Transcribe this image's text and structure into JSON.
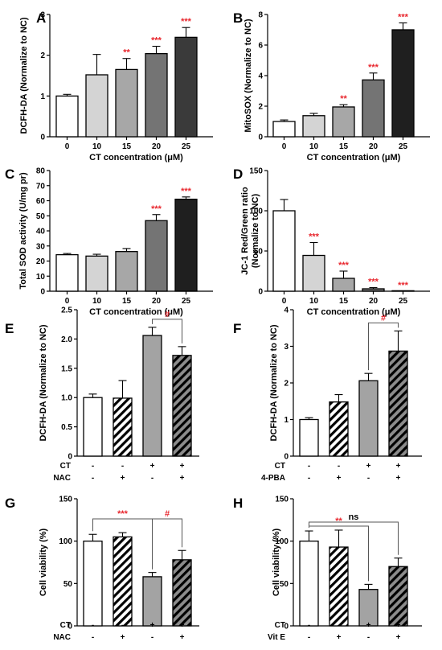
{
  "colors": {
    "star": "#e8262d",
    "ns": "#000000",
    "hatch_light": "#ffffff",
    "hatch_dark": "#8c8c8c"
  },
  "chart_data": [
    {
      "panel": "A",
      "type": "bar",
      "categories": [
        "0",
        "10",
        "15",
        "20",
        "25"
      ],
      "values": [
        1.0,
        1.52,
        1.65,
        2.04,
        2.44
      ],
      "errors": [
        0.04,
        0.5,
        0.27,
        0.18,
        0.24
      ],
      "fills": [
        "#ffffff",
        "#d4d4d4",
        "#a7a7a7",
        "#747474",
        "#3a3a3a"
      ],
      "marks": [
        "",
        "",
        "**",
        "***",
        "***"
      ],
      "xlabel": "CT concentration (μM)",
      "ylabel": "DCFH-DA (Normalize to NC)",
      "ylim": [
        0,
        3
      ],
      "yticks": [
        0,
        1,
        2,
        3
      ]
    },
    {
      "panel": "B",
      "type": "bar",
      "categories": [
        "0",
        "10",
        "15",
        "20",
        "25"
      ],
      "values": [
        1.0,
        1.38,
        1.95,
        3.72,
        7.0
      ],
      "errors": [
        0.1,
        0.15,
        0.15,
        0.45,
        0.45
      ],
      "fills": [
        "#ffffff",
        "#d4d4d4",
        "#a7a7a7",
        "#747474",
        "#1f1f1f"
      ],
      "marks": [
        "",
        "",
        "**",
        "***",
        "***"
      ],
      "xlabel": "CT concentration (μM)",
      "ylabel": "MitoSOX (Normalize to NC)",
      "ylim": [
        0,
        8
      ],
      "yticks": [
        0,
        2,
        4,
        6,
        8
      ]
    },
    {
      "panel": "C",
      "type": "bar",
      "categories": [
        "0",
        "10",
        "15",
        "20",
        "25"
      ],
      "values": [
        24.2,
        23.3,
        26.3,
        46.8,
        61.0
      ],
      "errors": [
        0.8,
        1.2,
        2.0,
        4.0,
        1.5
      ],
      "fills": [
        "#ffffff",
        "#d4d4d4",
        "#a7a7a7",
        "#747474",
        "#1f1f1f"
      ],
      "marks": [
        "",
        "",
        "",
        "***",
        "***"
      ],
      "xlabel": "CT concentration (μM)",
      "ylabel": "Total SOD activity (U/mg pr)",
      "ylim": [
        0,
        80
      ],
      "yticks": [
        0,
        10,
        20,
        30,
        40,
        50,
        60,
        70,
        80
      ]
    },
    {
      "panel": "D",
      "type": "bar",
      "categories": [
        "0",
        "10",
        "15",
        "20",
        "25"
      ],
      "values": [
        100,
        44.5,
        16,
        3,
        0
      ],
      "errors": [
        14,
        16,
        9,
        1.5,
        0
      ],
      "fills": [
        "#ffffff",
        "#d4d4d4",
        "#a7a7a7",
        "#747474",
        "#1f1f1f"
      ],
      "marks": [
        "",
        "***",
        "***",
        "***",
        "***"
      ],
      "xlabel": "CT concentration (μM)",
      "ylabel": "JC-1 Red/Green ratio",
      "ylabel2": "(Normalize to NC)",
      "ylim": [
        0,
        150
      ],
      "yticks": [
        0,
        50,
        100,
        150
      ]
    },
    {
      "panel": "E",
      "type": "bar",
      "values": [
        1.0,
        0.99,
        2.06,
        1.72
      ],
      "errors": [
        0.06,
        0.3,
        0.14,
        0.15
      ],
      "styles": [
        "white",
        "hatch-light",
        "gray",
        "hatch-dark"
      ],
      "ylabel": "DCFH-DA (Normalize to NC)",
      "ylim": [
        0,
        2.5
      ],
      "yticks": [
        0,
        0.5,
        1.0,
        1.5,
        2.0,
        2.5
      ],
      "treatments": [
        {
          "name": "CT",
          "signs": [
            "-",
            "-",
            "+",
            "+"
          ]
        },
        {
          "name": "NAC",
          "signs": [
            "-",
            "+",
            "-",
            "+"
          ]
        }
      ],
      "brackets": [
        {
          "from": 2,
          "to": 3,
          "label": "#",
          "color": "#e8262d"
        }
      ]
    },
    {
      "panel": "F",
      "type": "bar",
      "values": [
        1.0,
        1.48,
        2.06,
        2.87
      ],
      "errors": [
        0.05,
        0.2,
        0.2,
        0.55
      ],
      "styles": [
        "white",
        "hatch-light",
        "gray",
        "hatch-dark"
      ],
      "ylabel": "DCFH-DA (Normalize to NC)",
      "ylim": [
        0,
        4
      ],
      "yticks": [
        0,
        1,
        2,
        3,
        4
      ],
      "treatments": [
        {
          "name": "CT",
          "signs": [
            "-",
            "-",
            "+",
            "+"
          ]
        },
        {
          "name": "4-PBA",
          "signs": [
            "-",
            "+",
            "-",
            "+"
          ]
        }
      ],
      "brackets": [
        {
          "from": 2,
          "to": 3,
          "label": "#",
          "color": "#e8262d"
        }
      ]
    },
    {
      "panel": "G",
      "type": "bar",
      "values": [
        100,
        105,
        58,
        78
      ],
      "errors": [
        8,
        5,
        5,
        11
      ],
      "styles": [
        "white",
        "hatch-light",
        "gray",
        "hatch-dark"
      ],
      "ylabel": "Cell viability  (%)",
      "ylim": [
        0,
        150
      ],
      "yticks": [
        0,
        50,
        100,
        150
      ],
      "treatments": [
        {
          "name": "CT",
          "signs": [
            "-",
            "-",
            "+",
            "+"
          ]
        },
        {
          "name": "NAC",
          "signs": [
            "-",
            "+",
            "-",
            "+"
          ]
        }
      ],
      "brackets": [
        {
          "from": 0,
          "to": 2,
          "label": "***",
          "color": "#e8262d"
        },
        {
          "from": 2,
          "to": 3,
          "label": "#",
          "color": "#e8262d"
        }
      ]
    },
    {
      "panel": "H",
      "type": "bar",
      "values": [
        100,
        93,
        43,
        70
      ],
      "errors": [
        12,
        20,
        6,
        10
      ],
      "styles": [
        "white",
        "hatch-light",
        "gray",
        "hatch-dark"
      ],
      "ylabel": "Cell viability  (%)",
      "ylim": [
        0,
        150
      ],
      "yticks": [
        0,
        50,
        100,
        150
      ],
      "treatments": [
        {
          "name": "CT",
          "signs": [
            "-",
            "-",
            "+",
            "+"
          ]
        },
        {
          "name": "Vit E",
          "signs": [
            "-",
            "+",
            "-",
            "+"
          ]
        }
      ],
      "brackets": [
        {
          "from": 0,
          "to": 3,
          "label": "ns",
          "color": "#000000"
        },
        {
          "from": 0,
          "to": 2,
          "label": "**",
          "color": "#e8262d"
        }
      ]
    }
  ]
}
